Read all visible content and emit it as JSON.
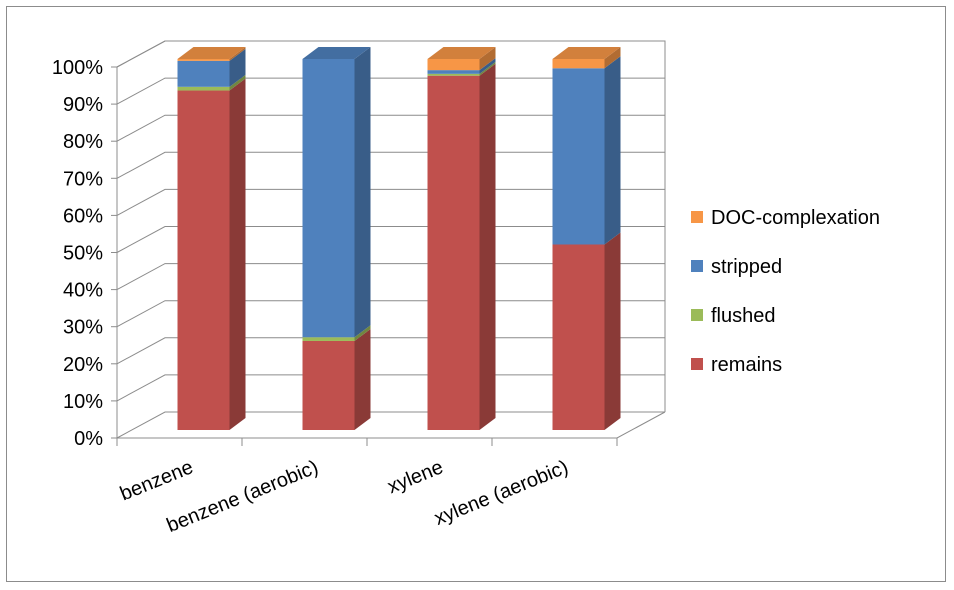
{
  "chart_data": {
    "type": "bar",
    "stacked": true,
    "percent_stacked": true,
    "three_d": true,
    "categories": [
      "benzene",
      "benzene (aerobic)",
      "xylene",
      "xylene (aerobic)"
    ],
    "series": [
      {
        "name": "remains",
        "values": [
          91.5,
          24,
          95.5,
          50
        ],
        "color": "#c0504d"
      },
      {
        "name": "flushed",
        "values": [
          1,
          1,
          0.5,
          0
        ],
        "color": "#9bbb59"
      },
      {
        "name": "stripped",
        "values": [
          7,
          75,
          1,
          47.5
        ],
        "color": "#4f81bd"
      },
      {
        "name": "DOC-complexation",
        "values": [
          0.5,
          0,
          3,
          2.5
        ],
        "color": "#f79646"
      }
    ],
    "y_ticks": [
      "0%",
      "10%",
      "20%",
      "30%",
      "40%",
      "50%",
      "60%",
      "70%",
      "80%",
      "90%",
      "100%"
    ],
    "ylim": [
      0,
      100
    ],
    "grid": true,
    "legend_position": "right",
    "legend_order": [
      "DOC-complexation",
      "stripped",
      "flushed",
      "remains"
    ]
  }
}
